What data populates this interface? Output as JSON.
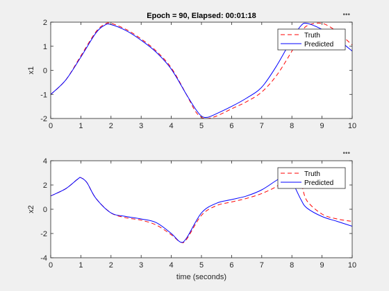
{
  "figure": {
    "background": "#f0f0f0",
    "toolbar_glyph": "•••"
  },
  "chart_data": [
    {
      "type": "line",
      "title": "Epoch = 90, Elapsed: 00:01:18",
      "xlabel": "",
      "ylabel": "x1",
      "xlim": [
        0,
        10
      ],
      "ylim": [
        -2,
        2
      ],
      "xticks": [
        0,
        1,
        2,
        3,
        4,
        5,
        6,
        7,
        8,
        9,
        10
      ],
      "yticks": [
        -2,
        -1,
        0,
        1,
        2
      ],
      "grid": false,
      "legend": "top-right",
      "series": [
        {
          "name": "Truth",
          "color": "#ff0000",
          "style": "dashed",
          "x": [
            0,
            0.5,
            1.0,
            1.5,
            1.8,
            2.0,
            2.5,
            3.0,
            3.5,
            4.0,
            4.5,
            4.8,
            5.0,
            5.2,
            5.5,
            6.0,
            6.5,
            7.0,
            7.5,
            8.0,
            8.3,
            8.5,
            9.0,
            9.5,
            10.0
          ],
          "values": [
            -1.0,
            -0.4,
            0.6,
            1.6,
            1.92,
            1.95,
            1.7,
            1.3,
            0.8,
            0.1,
            -1.0,
            -1.7,
            -1.95,
            -2.0,
            -1.9,
            -1.6,
            -1.3,
            -0.9,
            -0.2,
            0.8,
            1.5,
            1.85,
            1.95,
            1.6,
            1.05
          ]
        },
        {
          "name": "Predicted",
          "color": "#0000ff",
          "style": "solid",
          "x": [
            0,
            0.5,
            1.0,
            1.5,
            1.8,
            2.0,
            2.5,
            3.0,
            3.5,
            4.0,
            4.5,
            4.8,
            5.0,
            5.2,
            5.5,
            6.0,
            6.5,
            7.0,
            7.5,
            8.0,
            8.3,
            8.5,
            9.0,
            9.5,
            10.0
          ],
          "values": [
            -1.0,
            -0.4,
            0.55,
            1.55,
            1.88,
            1.9,
            1.65,
            1.25,
            0.75,
            0.05,
            -1.0,
            -1.6,
            -1.9,
            -1.95,
            -1.8,
            -1.5,
            -1.15,
            -0.7,
            0.2,
            1.3,
            1.85,
            1.95,
            1.7,
            1.3,
            0.8
          ]
        }
      ]
    },
    {
      "type": "line",
      "title": "",
      "xlabel": "time (seconds)",
      "ylabel": "x2",
      "xlim": [
        0,
        10
      ],
      "ylim": [
        -4,
        4
      ],
      "xticks": [
        0,
        1,
        2,
        3,
        4,
        5,
        6,
        7,
        8,
        9,
        10
      ],
      "yticks": [
        -4,
        -2,
        0,
        2,
        4
      ],
      "grid": false,
      "legend": "top-right",
      "series": [
        {
          "name": "Truth",
          "color": "#ff0000",
          "style": "dashed",
          "x": [
            0,
            0.5,
            0.9,
            1.0,
            1.2,
            1.5,
            2.0,
            2.5,
            3.0,
            3.5,
            4.0,
            4.3,
            4.5,
            5.0,
            5.5,
            6.0,
            6.5,
            7.0,
            7.5,
            7.8,
            8.0,
            8.3,
            8.5,
            9.0,
            9.5,
            10.0
          ],
          "values": [
            1.1,
            1.7,
            2.5,
            2.6,
            2.2,
            0.9,
            -0.3,
            -0.7,
            -0.9,
            -1.3,
            -2.1,
            -2.7,
            -2.5,
            -0.5,
            0.3,
            0.6,
            0.9,
            1.3,
            1.9,
            2.6,
            2.9,
            2.1,
            0.7,
            -0.4,
            -0.8,
            -1.0
          ]
        },
        {
          "name": "Predicted",
          "color": "#0000ff",
          "style": "solid",
          "x": [
            0,
            0.5,
            0.9,
            1.0,
            1.2,
            1.5,
            2.0,
            2.5,
            3.0,
            3.5,
            4.0,
            4.3,
            4.5,
            5.0,
            5.5,
            6.0,
            6.5,
            7.0,
            7.5,
            7.8,
            8.0,
            8.3,
            8.5,
            9.0,
            9.5,
            10.0
          ],
          "values": [
            1.1,
            1.7,
            2.5,
            2.6,
            2.2,
            0.9,
            -0.3,
            -0.6,
            -0.8,
            -1.1,
            -2.0,
            -2.7,
            -2.4,
            -0.3,
            0.5,
            0.8,
            1.1,
            1.6,
            2.4,
            2.8,
            2.3,
            0.8,
            0.1,
            -0.6,
            -1.0,
            -1.4
          ]
        }
      ]
    }
  ]
}
